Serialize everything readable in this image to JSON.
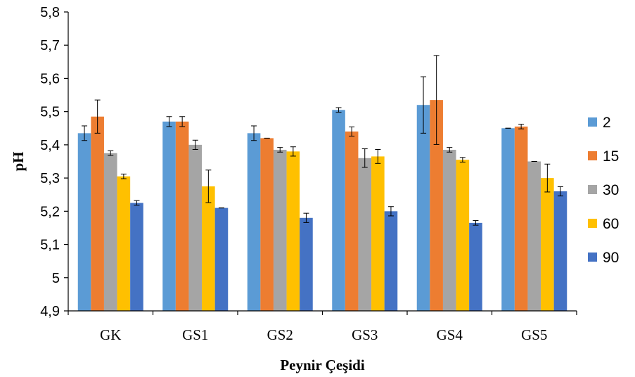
{
  "chart_data": {
    "type": "bar",
    "xlabel": "Peynir Çeşidi",
    "ylabel": "pH",
    "ylim": [
      4.9,
      5.8
    ],
    "yticks": [
      4.9,
      5.0,
      5.1,
      5.2,
      5.3,
      5.4,
      5.5,
      5.6,
      5.7,
      5.8
    ],
    "ytick_labels": [
      "4,9",
      "5",
      "5,1",
      "5,2",
      "5,3",
      "5,4",
      "5,5",
      "5,6",
      "5,7",
      "5,8"
    ],
    "categories": [
      "GK",
      "GS1",
      "GS2",
      "GS3",
      "GS4",
      "GS5"
    ],
    "legend_position": "right",
    "series": [
      {
        "name": "2",
        "color": "#5B9BD5",
        "values": [
          5.435,
          5.47,
          5.435,
          5.505,
          5.52,
          5.45
        ],
        "errors": [
          0.022,
          0.015,
          0.022,
          0.007,
          0.085,
          0.0
        ]
      },
      {
        "name": "15",
        "color": "#ED7D31",
        "values": [
          5.485,
          5.47,
          5.42,
          5.44,
          5.535,
          5.455
        ],
        "errors": [
          0.05,
          0.015,
          0.0,
          0.014,
          0.134,
          0.007
        ]
      },
      {
        "name": "30",
        "color": "#A5A5A5",
        "values": [
          5.375,
          5.4,
          5.385,
          5.36,
          5.385,
          5.35
        ],
        "errors": [
          0.007,
          0.014,
          0.007,
          0.028,
          0.007,
          0.0
        ]
      },
      {
        "name": "60",
        "color": "#FFC000",
        "values": [
          5.305,
          5.275,
          5.38,
          5.365,
          5.355,
          5.3
        ],
        "errors": [
          0.007,
          0.049,
          0.014,
          0.021,
          0.007,
          0.042
        ]
      },
      {
        "name": "90",
        "color": "#4472C4",
        "values": [
          5.225,
          5.21,
          5.18,
          5.2,
          5.165,
          5.26
        ],
        "errors": [
          0.007,
          0.0,
          0.014,
          0.014,
          0.007,
          0.014
        ]
      }
    ]
  }
}
